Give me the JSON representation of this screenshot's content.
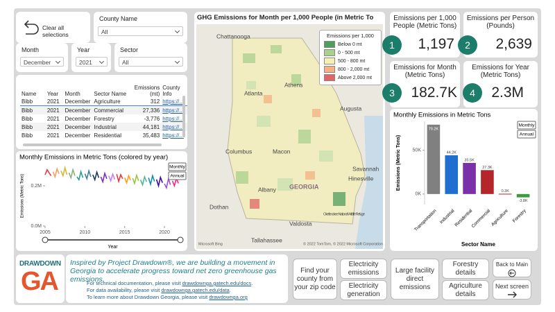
{
  "filters": {
    "clear_label": "Clear all selections",
    "county": {
      "label": "County Name",
      "value": "All"
    },
    "month": {
      "label": "Month",
      "value": "December"
    },
    "year": {
      "label": "Year",
      "value": "2021"
    },
    "sector": {
      "label": "Sector",
      "value": "All"
    }
  },
  "table": {
    "columns": [
      "Name",
      "Year",
      "Month",
      "Sector Name",
      "Emissions (mt)",
      "County Info"
    ],
    "rows": [
      [
        "Bibb",
        "2021",
        "December",
        "Agriculture",
        "312",
        "https://..."
      ],
      [
        "Bibb",
        "2021",
        "December",
        "Commercial",
        "27,336",
        "https://..."
      ],
      [
        "Bibb",
        "2021",
        "December",
        "Forestry",
        "-3,776",
        "https://..."
      ],
      [
        "Bibb",
        "2021",
        "December",
        "Industrial",
        "44,181",
        "https://..."
      ],
      [
        "Bibb",
        "2021",
        "December",
        "Residential",
        "35,483",
        "https://..."
      ]
    ]
  },
  "kpis": [
    {
      "badge": "1",
      "label": "Emissions per 1,000 People (Metric Tons)",
      "value": "1,197"
    },
    {
      "badge": "2",
      "label": "Emissions per Person (Pounds)",
      "value": "2,639"
    },
    {
      "badge": "3",
      "label": "Emissions for Month (Metric Tons)",
      "value": "182.7K"
    },
    {
      "badge": "4",
      "label": "Emissions for Year (Metric Tons)",
      "value": "2.3M"
    }
  ],
  "map": {
    "title": "GHG Emissions for Month per 1,000 People (in Metric To",
    "legend_title": "Emissions per 1,000",
    "legend": [
      {
        "label": "Below 0 mt",
        "color": "#4f9e5c"
      },
      {
        "label": "0 - 500 mt",
        "color": "#a9d18e"
      },
      {
        "label": "500 - 800 mt",
        "color": "#f6f0b4"
      },
      {
        "label": "800 - 2,000 mt",
        "color": "#f4b183"
      },
      {
        "label": "Above 2,000 mt",
        "color": "#e06666"
      }
    ],
    "places": [
      "Chattanooga",
      "Atlanta",
      "Athens",
      "Augusta",
      "Columbus",
      "Macon",
      "Savannah",
      "Hinesville",
      "Albany",
      "GEORGIA",
      "Dothan",
      "Valdosta",
      "Tallahassee",
      "Okefenokee National Wildlife Refuge"
    ],
    "brand": "Microsoft Bing",
    "credit": "© 2022 TomTom, © 2022 Microsoft Corporation"
  },
  "chart_data": [
    {
      "type": "line",
      "title": "Monthly Emissions in Metric Tons (colored by year)",
      "y_label": "Emissions (Metric Tons)",
      "x_label": "Year",
      "toggles": [
        "Monthly",
        "Annual"
      ],
      "xlim": [
        2005,
        2022
      ],
      "ylim": [
        0,
        300000
      ],
      "xticks": [
        2005,
        2010,
        2015,
        2020
      ],
      "yticks": [
        {
          "value": 0,
          "label": "0.0M"
        },
        {
          "value": 200000,
          "label": "0.2M"
        }
      ],
      "series": [
        {
          "color": "#e63946",
          "x": [
            2005,
            2005.25,
            2005.5,
            2005.75
          ],
          "values": [
            255000,
            280000,
            265000,
            250000
          ]
        },
        {
          "color": "#f4a261",
          "x": [
            2006,
            2006.25,
            2006.5,
            2006.75
          ],
          "values": [
            270000,
            245000,
            285000,
            260000
          ]
        },
        {
          "color": "#d4b93c",
          "x": [
            2007,
            2007.25,
            2007.5,
            2007.75
          ],
          "values": [
            275000,
            250000,
            290000,
            255000
          ]
        },
        {
          "color": "#8ab17d",
          "x": [
            2008,
            2008.25,
            2008.5,
            2008.75
          ],
          "values": [
            265000,
            240000,
            280000,
            250000
          ]
        },
        {
          "color": "#2a9d8f",
          "x": [
            2009,
            2009.25,
            2009.5,
            2009.75
          ],
          "values": [
            245000,
            230000,
            270000,
            240000
          ]
        },
        {
          "color": "#457b9d",
          "x": [
            2010,
            2010.25,
            2010.5,
            2010.75
          ],
          "values": [
            260000,
            235000,
            275000,
            245000
          ]
        },
        {
          "color": "#1d3557",
          "x": [
            2011,
            2011.25,
            2011.5,
            2011.75
          ],
          "values": [
            255000,
            230000,
            268000,
            240000
          ]
        },
        {
          "color": "#7b2cbf",
          "x": [
            2012,
            2012.25,
            2012.5,
            2012.75
          ],
          "values": [
            245000,
            220000,
            262000,
            235000
          ]
        },
        {
          "color": "#c77dff",
          "x": [
            2013,
            2013.25,
            2013.5,
            2013.75
          ],
          "values": [
            250000,
            225000,
            258000,
            232000
          ]
        },
        {
          "color": "#e5383b",
          "x": [
            2014,
            2014.25,
            2014.5,
            2014.75
          ],
          "values": [
            258000,
            222000,
            255000,
            235000
          ]
        },
        {
          "color": "#ff9f1c",
          "x": [
            2015,
            2015.25,
            2015.5,
            2015.75
          ],
          "values": [
            240000,
            215000,
            250000,
            228000
          ]
        },
        {
          "color": "#9bc53d",
          "x": [
            2016,
            2016.25,
            2016.5,
            2016.75
          ],
          "values": [
            238000,
            212000,
            252000,
            225000
          ]
        },
        {
          "color": "#52b69a",
          "x": [
            2017,
            2017.25,
            2017.5,
            2017.75
          ],
          "values": [
            230000,
            205000,
            245000,
            220000
          ]
        },
        {
          "color": "#168aad",
          "x": [
            2018,
            2018.25,
            2018.5,
            2018.75
          ],
          "values": [
            240000,
            208000,
            250000,
            222000
          ]
        },
        {
          "color": "#3a0ca3",
          "x": [
            2019,
            2019.25,
            2019.5,
            2019.75
          ],
          "values": [
            232000,
            200000,
            242000,
            215000
          ]
        },
        {
          "color": "#9d4edd",
          "x": [
            2020,
            2020.25,
            2020.5,
            2020.75
          ],
          "values": [
            210000,
            190000,
            235000,
            205000
          ]
        },
        {
          "color": "#f72585",
          "x": [
            2021,
            2021.25,
            2021.5,
            2021.75
          ],
          "values": [
            225000,
            200000,
            238000,
            212000
          ]
        }
      ]
    },
    {
      "type": "bar",
      "title": "Monthly Emissions in Metric Tons",
      "y_label": "Emissions (Metric Tons)",
      "x_label": "Sector Name",
      "toggles": [
        "Monthly",
        "Annual"
      ],
      "categories": [
        "Transportation",
        "Industrial",
        "Residential",
        "Commercial",
        "Agriculture",
        "Forestry"
      ],
      "values": [
        79200,
        44200,
        35500,
        27300,
        300,
        -3800
      ],
      "value_labels": [
        "79.2K",
        "44.2K",
        "35.5K",
        "27.3K",
        "0.3K",
        "-3.8K"
      ],
      "colors": [
        "#808080",
        "#1f6fd0",
        "#7b2fa8",
        "#b5262b",
        "#b5262b",
        "#3a9c3a"
      ],
      "ylim": [
        -12000,
        83000
      ],
      "yticks": [
        {
          "value": 0,
          "label": "0K"
        },
        {
          "value": 50000,
          "label": "50K"
        }
      ]
    }
  ],
  "footer": {
    "logo_top": "DRAWDOWN",
    "logo_bottom": "GA",
    "lead": "Inspired by Project Drawdown®, we are building a movement in Georgia to accelerate progress toward net zero greenhouse gas emissions.",
    "notes": [
      {
        "prefix": "For technical documentation, please visit ",
        "link": "drawdownga.gatech.edu/docs",
        "suffix": "."
      },
      {
        "prefix": "For data availability, please visit ",
        "link": "drawdownga.gatech.edu/data",
        "suffix": "."
      },
      {
        "prefix": "To learn more about Drawdown Georgia, please visit ",
        "link": "drawdownga.org",
        "suffix": ""
      }
    ],
    "buttons": [
      "Find your county from your zip code",
      "Electricity emissions",
      "Electricity generation",
      "Large facility direct emissions",
      "Forestry details",
      "Agriculture details",
      "Back to Main",
      "Next screen"
    ]
  }
}
